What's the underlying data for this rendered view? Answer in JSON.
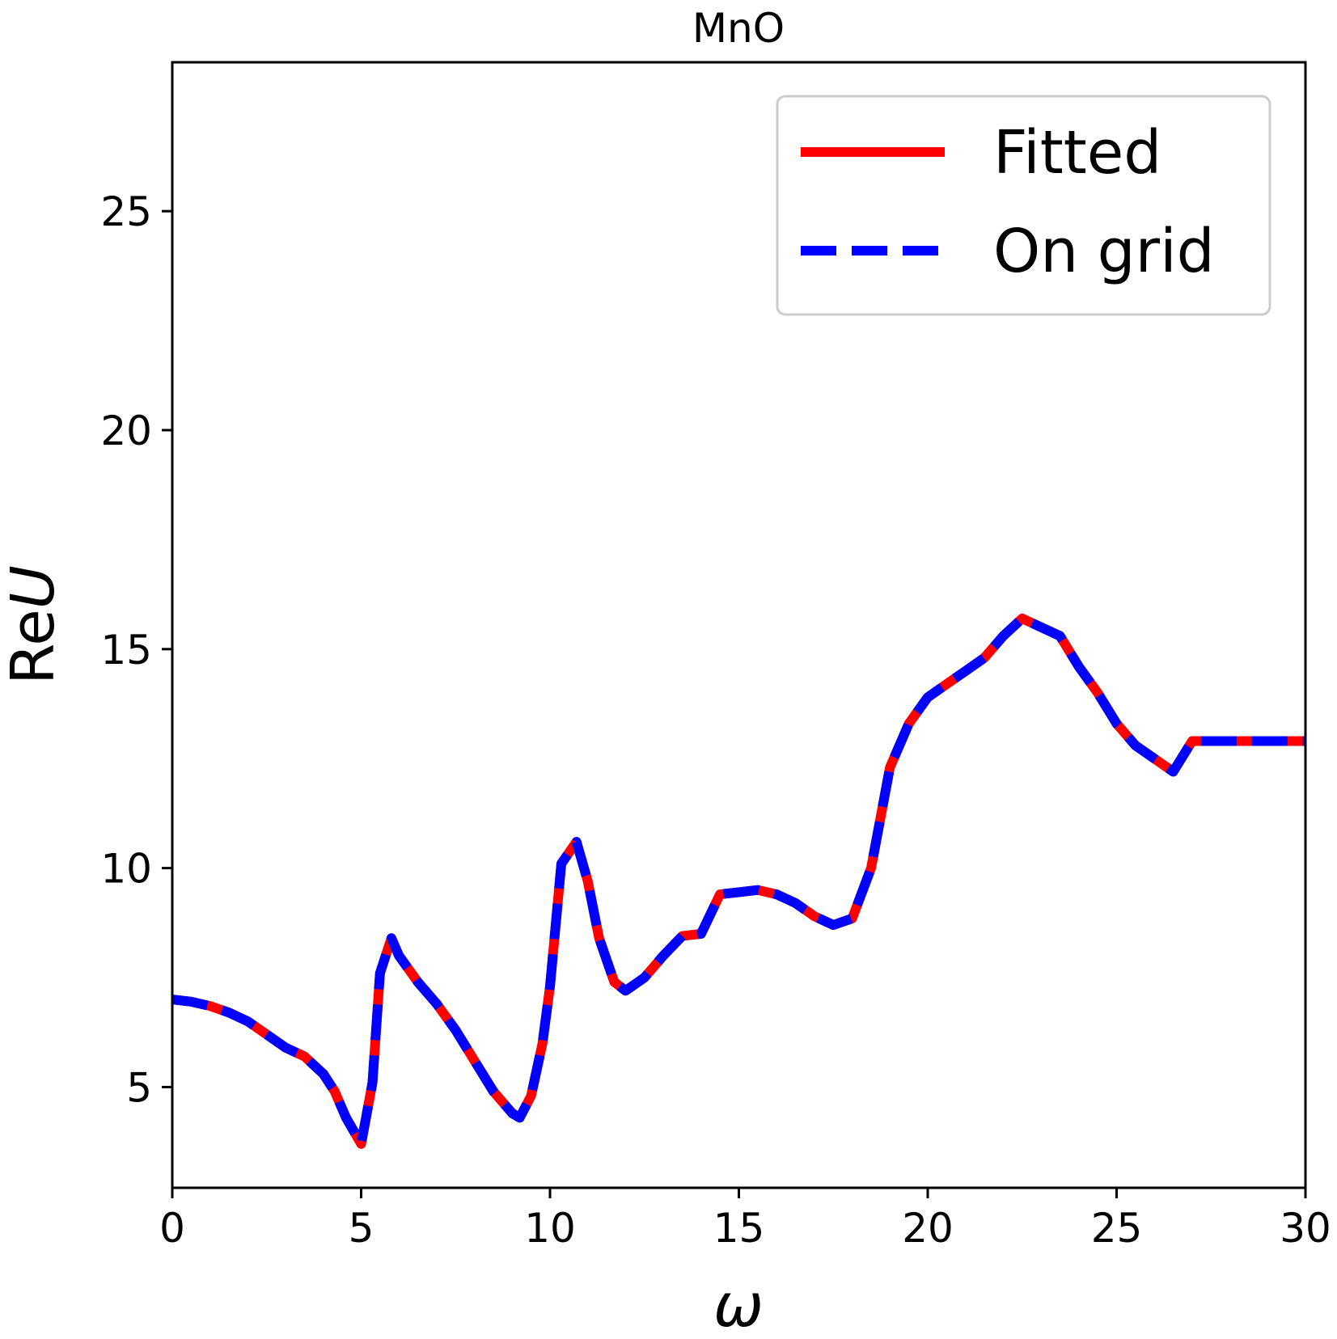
{
  "chart_data": {
    "type": "line",
    "title": "MnO",
    "xlabel": "ω",
    "ylabel_plain": "Re",
    "ylabel_italic": "U",
    "xlim": [
      0,
      30
    ],
    "ylim": [
      2.7,
      28.4
    ],
    "xticks": [
      0,
      5,
      10,
      15,
      20,
      25,
      30
    ],
    "yticks": [
      5,
      10,
      15,
      20,
      25
    ],
    "xtick_labels": [
      "0",
      "5",
      "10",
      "15",
      "20",
      "25",
      "30"
    ],
    "ytick_labels": [
      "5",
      "10",
      "15",
      "20",
      "25"
    ],
    "grid": false,
    "legend": {
      "placement": "top-right"
    },
    "series": [
      {
        "name": "Fitted",
        "color": "#ff0000",
        "style": "solid",
        "x": [
          0,
          0.5,
          1.0,
          1.5,
          2.0,
          2.5,
          3.0,
          3.5,
          4.0,
          4.3,
          4.6,
          5.0,
          5.3,
          5.5,
          5.8,
          6.0,
          6.5,
          7.0,
          7.5,
          8.0,
          8.5,
          9.0,
          9.2,
          9.5,
          9.8,
          10.0,
          10.3,
          10.7,
          11.0,
          11.3,
          11.7,
          12.0,
          12.5,
          13.0,
          13.5,
          14.0,
          14.5,
          15.0,
          15.5,
          16.0,
          16.5,
          17.0,
          17.5,
          18.0,
          18.5,
          19.0,
          19.5,
          20.0,
          20.5,
          21.0,
          21.5,
          22.0,
          22.5,
          23.0,
          23.5,
          24.0,
          24.5,
          25.0,
          25.5,
          26.0,
          26.5,
          27.0,
          27.5,
          28.0,
          28.5,
          29.0,
          29.5,
          29.8,
          30.0
        ],
        "y": [
          7.0,
          6.95,
          6.85,
          6.7,
          6.5,
          6.2,
          5.9,
          5.7,
          5.3,
          4.9,
          4.3,
          3.7,
          5.1,
          7.6,
          8.4,
          8.0,
          7.4,
          6.9,
          6.3,
          5.6,
          4.9,
          4.4,
          4.3,
          4.8,
          6.0,
          7.3,
          10.1,
          10.6,
          9.7,
          8.4,
          7.4,
          7.2,
          7.5,
          8.0,
          8.45,
          8.5,
          9.4,
          9.45,
          9.5,
          9.4,
          9.2,
          8.9,
          8.7,
          8.85,
          10.0,
          12.3,
          13.3,
          13.9,
          14.2,
          14.5,
          14.8,
          15.3,
          15.7,
          15.5,
          15.3,
          14.6,
          14.0,
          13.3,
          12.8,
          12.5,
          12.2,
          12.9,
          12.9,
          12.9,
          12.9,
          12.9,
          12.9,
          12.9,
          12.9
        ],
        "x_resample_note": ""
      },
      {
        "name": "On grid",
        "color": "#0000ff",
        "style": "dashed",
        "x": [
          0,
          0.5,
          1.0,
          1.5,
          2.0,
          2.5,
          3.0,
          3.5,
          4.0,
          4.3,
          4.6,
          5.0,
          5.3,
          5.5,
          5.8,
          6.0,
          6.5,
          7.0,
          7.5,
          8.0,
          8.5,
          9.0,
          9.2,
          9.5,
          9.8,
          10.0,
          10.3,
          10.7,
          11.0,
          11.3,
          11.7,
          12.0,
          12.5,
          13.0,
          13.5,
          14.0,
          14.5,
          15.0,
          15.5,
          16.0,
          16.5,
          17.0,
          17.5,
          18.0,
          18.5,
          19.0,
          19.5,
          20.0,
          20.5,
          21.0,
          21.5,
          22.0,
          22.5,
          23.0,
          23.5,
          24.0,
          24.5,
          25.0,
          25.5,
          26.0,
          26.5,
          27.0,
          27.5,
          28.0,
          28.5,
          29.0,
          29.5,
          29.8,
          30.0
        ],
        "y": [
          7.0,
          6.95,
          6.85,
          6.7,
          6.5,
          6.2,
          5.9,
          5.7,
          5.3,
          4.9,
          4.3,
          3.7,
          5.1,
          7.6,
          8.4,
          8.0,
          7.4,
          6.9,
          6.3,
          5.6,
          4.9,
          4.4,
          4.3,
          4.8,
          6.0,
          7.3,
          10.1,
          10.6,
          9.7,
          8.4,
          7.4,
          7.2,
          7.5,
          8.0,
          8.45,
          8.5,
          9.4,
          9.45,
          9.5,
          9.4,
          9.2,
          8.9,
          8.7,
          8.85,
          10.0,
          12.3,
          13.3,
          13.9,
          14.2,
          14.5,
          14.8,
          15.3,
          15.7,
          15.5,
          15.3,
          14.6,
          14.0,
          13.3,
          12.8,
          12.5,
          12.2,
          12.9,
          12.9,
          12.9,
          12.9,
          12.9,
          12.9,
          12.9,
          12.9
        ]
      }
    ]
  }
}
